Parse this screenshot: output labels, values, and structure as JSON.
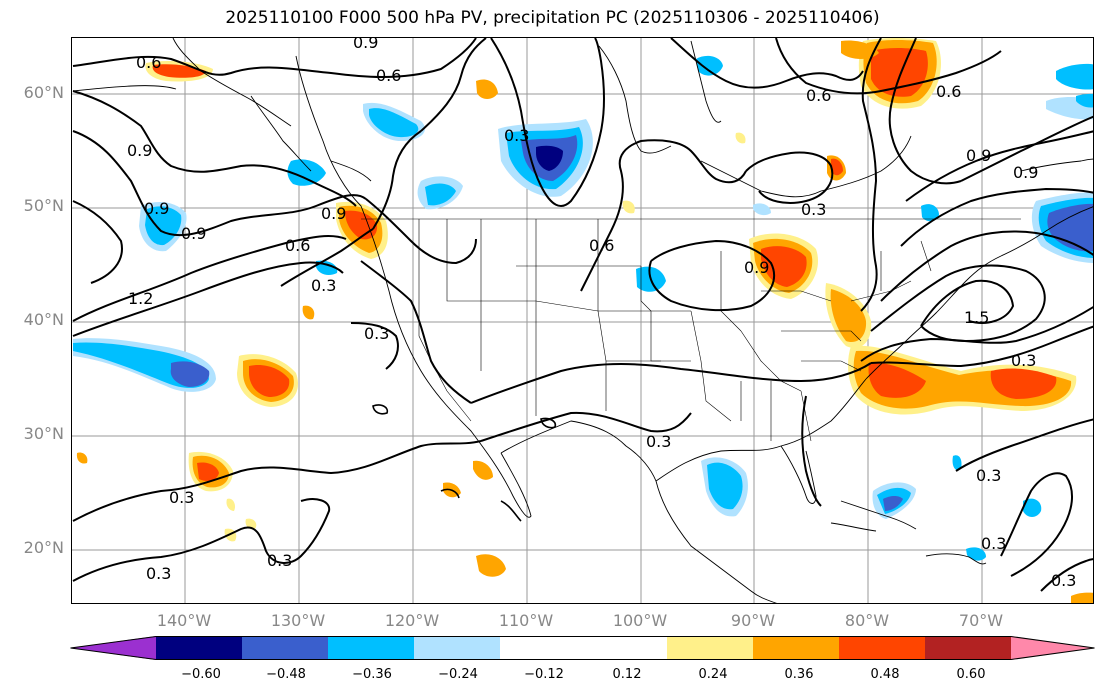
{
  "title": "2025110100 F000 500 hPa PV, precipitation PC (2025110306 - 2025110406)",
  "lat_labels": [
    "60°N",
    "50°N",
    "40°N",
    "30°N",
    "20°N"
  ],
  "lon_labels": [
    "140°W",
    "130°W",
    "120°W",
    "110°W",
    "100°W",
    "90°W",
    "80°W",
    "70°W"
  ],
  "contour_labels": [
    "0.6",
    "0.9",
    "0.6",
    "0.6",
    "0.3",
    "0.6",
    "0.9",
    "0.9",
    "0.9",
    "0.9",
    "1.2",
    "0.6",
    "0.3",
    "0.3",
    "0.9",
    "0.6",
    "0.9",
    "0.3",
    "0.9",
    "1.5",
    "0.3",
    "0.3",
    "0.3",
    "0.3",
    "0.3",
    "0.3",
    "0.3",
    "0.3"
  ],
  "colorbar": {
    "ticks": [
      "−0.60",
      "−0.48",
      "−0.36",
      "−0.24",
      "−0.12",
      "0.12",
      "0.24",
      "0.36",
      "0.48",
      "0.60"
    ],
    "colors": [
      "#9b30d0",
      "#00007f",
      "#3a5fcd",
      "#00bfff",
      "#b0e2ff",
      "#ffffff",
      "#fff08a",
      "#ffa500",
      "#ff4500",
      "#b22222",
      "#ff88aa"
    ]
  },
  "colors": {
    "blue_light": "#b0e2ff",
    "blue": "#00bfff",
    "blue_dark": "#3a5fcd",
    "navy": "#00007f",
    "yellow": "#fff08a",
    "orange": "#ffa500",
    "red_orange": "#ff4500"
  }
}
